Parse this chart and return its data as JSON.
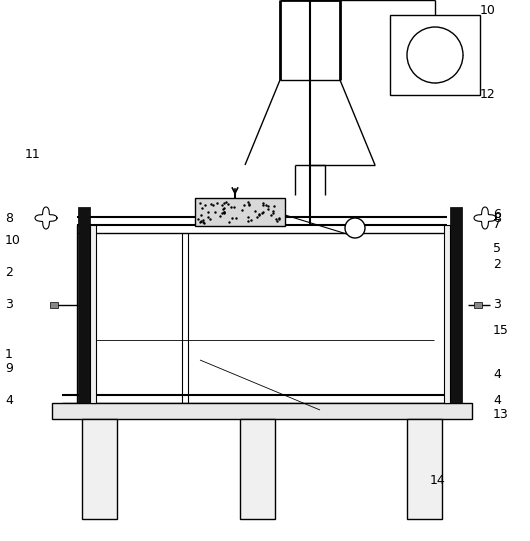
{
  "bg_color": "#ffffff",
  "line_color": "#000000",
  "dark_color": "#1a1a1a",
  "gray_color": "#999999",
  "light_gray": "#d0d0d0",
  "dot_fill": "#c8c8c8",
  "fig_width": 5.3,
  "fig_height": 5.41,
  "dpi": 100
}
